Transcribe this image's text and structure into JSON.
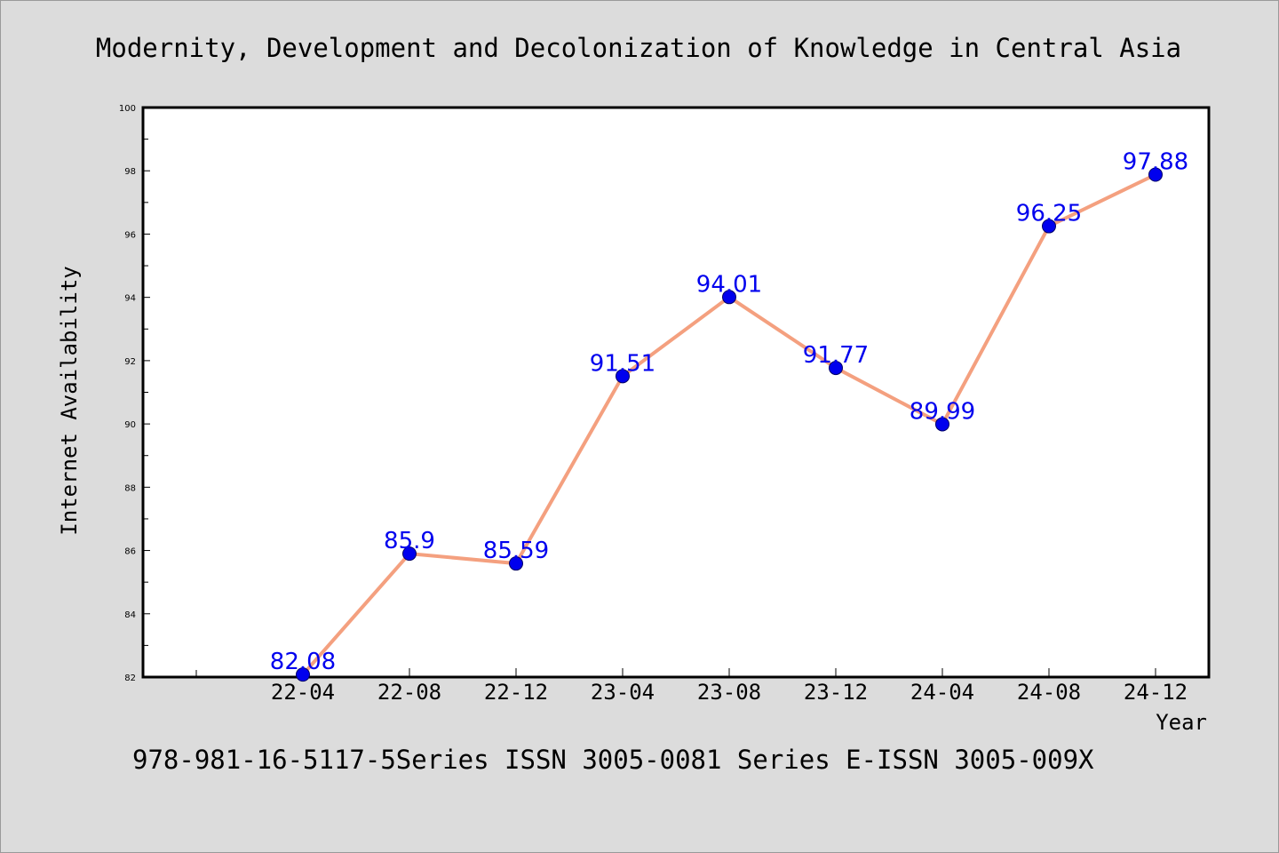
{
  "chart_data": {
    "type": "line",
    "title": "Modernity, Development and Decolonization of Knowledge in Central Asia",
    "xlabel": "Year",
    "ylabel": "Internet Availability",
    "categories": [
      "22-04",
      "22-08",
      "22-12",
      "23-04",
      "23-08",
      "23-12",
      "24-04",
      "24-08",
      "24-12"
    ],
    "values": [
      82.08,
      85.9,
      85.59,
      91.51,
      94.01,
      91.77,
      89.99,
      96.25,
      97.88
    ],
    "data_labels": [
      "82.08",
      "85.9",
      "85.59",
      "91.51",
      "94.01",
      "91.77",
      "89.99",
      "96.25",
      "97.88"
    ],
    "ylim": [
      82,
      100
    ],
    "yticks": [
      82,
      84,
      86,
      88,
      90,
      92,
      94,
      96,
      98,
      100
    ],
    "grid": false,
    "line_color": "#f4a07f",
    "marker_color": "#0000ee",
    "label_color": "#0000ee"
  },
  "footer": {
    "text": "978-981-16-5117-5Series ISSN 3005-0081 Series E-ISSN 3005-009X"
  },
  "colors": {
    "background": "#dcdcdc",
    "plot_background": "#ffffff",
    "axis": "#000000"
  }
}
